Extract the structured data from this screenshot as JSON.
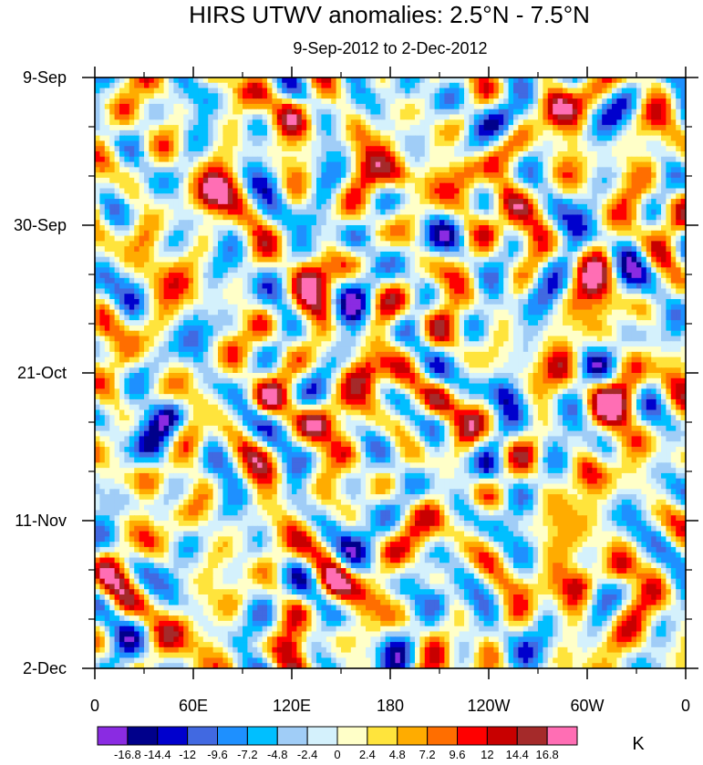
{
  "chart_data": {
    "type": "heatmap",
    "title": "HIRS UTWV anomalies: 2.5°N - 7.5°N",
    "subtitle": "9-Sep-2012 to 2-Dec-2012",
    "x_ticks": [
      "0",
      "60E",
      "120E",
      "180",
      "120W",
      "60W",
      "0"
    ],
    "x_tick_values": [
      0,
      60,
      120,
      180,
      240,
      300,
      360
    ],
    "xlim": [
      0,
      360
    ],
    "y_ticks": [
      "9-Sep",
      "30-Sep",
      "21-Oct",
      "11-Nov",
      "2-Dec"
    ],
    "y_tick_values": [
      0,
      21,
      42,
      63,
      84
    ],
    "ylim": [
      0,
      84
    ],
    "colorbar_unit": "K",
    "colorbar_labels": [
      "-16.8",
      "-14.4",
      "-12",
      "-9.6",
      "-7.2",
      "-4.8",
      "-2.4",
      "0",
      "2.4",
      "4.8",
      "7.2",
      "9.6",
      "12",
      "14.4",
      "16.8"
    ],
    "levels": [
      -16.8,
      -14.4,
      -12,
      -9.6,
      -7.2,
      -4.8,
      -2.4,
      0,
      2.4,
      4.8,
      7.2,
      9.6,
      12,
      14.4,
      16.8
    ],
    "colors": [
      "#8a2be2",
      "#00008b",
      "#0000cd",
      "#4169e1",
      "#1e90ff",
      "#00bfff",
      "#a0cdf7",
      "#d4f1fc",
      "#ffffc8",
      "#ffe43c",
      "#ffac00",
      "#ff6e00",
      "#ff0000",
      "#c80000",
      "#a52a2a",
      "#ff6eb4"
    ],
    "anomaly_features": [
      {
        "lon": 70,
        "day": 17,
        "value": 12.5
      },
      {
        "lon": 30,
        "day": 22,
        "value": 4
      },
      {
        "lon": 130,
        "day": 28,
        "value": 9
      },
      {
        "lon": 185,
        "day": 14,
        "value": 13
      },
      {
        "lon": 225,
        "day": 13,
        "value": 13
      },
      {
        "lon": 250,
        "day": 17,
        "value": 9
      },
      {
        "lon": 280,
        "day": 4,
        "value": 13
      },
      {
        "lon": 160,
        "day": 7,
        "value": 6
      },
      {
        "lon": 165,
        "day": 42,
        "value": 12
      },
      {
        "lon": 135,
        "day": 49,
        "value": 13
      },
      {
        "lon": 105,
        "day": 46,
        "value": 11
      },
      {
        "lon": 210,
        "day": 46,
        "value": 11
      },
      {
        "lon": 305,
        "day": 44,
        "value": 9
      },
      {
        "lon": 325,
        "day": 46,
        "value": 9
      },
      {
        "lon": 300,
        "day": 56,
        "value": 9
      },
      {
        "lon": 145,
        "day": 72,
        "value": 12
      },
      {
        "lon": 120,
        "day": 81,
        "value": 13
      },
      {
        "lon": 295,
        "day": 72,
        "value": 12
      },
      {
        "lon": 320,
        "day": 70,
        "value": 11
      },
      {
        "lon": 40,
        "day": 74,
        "value": 5
      },
      {
        "lon": 10,
        "day": 63,
        "value": 4
      },
      {
        "lon": 310,
        "day": 32,
        "value": 7
      },
      {
        "lon": 215,
        "day": 58,
        "value": 6
      },
      {
        "lon": 60,
        "day": 56,
        "value": 5
      },
      {
        "lon": 340,
        "day": 12,
        "value": 5
      },
      {
        "lon": 120,
        "day": 5,
        "value": 5
      },
      {
        "lon": 190,
        "day": 2,
        "value": -9
      },
      {
        "lon": 215,
        "day": 4,
        "value": -8
      },
      {
        "lon": 250,
        "day": 6,
        "value": -12
      },
      {
        "lon": 160,
        "day": 23,
        "value": -10
      },
      {
        "lon": 205,
        "day": 24,
        "value": -6
      },
      {
        "lon": 20,
        "day": 32,
        "value": -6
      },
      {
        "lon": 45,
        "day": 48,
        "value": -13
      },
      {
        "lon": 70,
        "day": 49,
        "value": -11
      },
      {
        "lon": 35,
        "day": 54,
        "value": -6
      },
      {
        "lon": 250,
        "day": 45,
        "value": -13
      },
      {
        "lon": 240,
        "day": 56,
        "value": -12
      },
      {
        "lon": 195,
        "day": 58,
        "value": -8
      },
      {
        "lon": 210,
        "day": 74,
        "value": -9
      },
      {
        "lon": 250,
        "day": 80,
        "value": -9
      },
      {
        "lon": 100,
        "day": 72,
        "value": -7
      },
      {
        "lon": 20,
        "day": 60,
        "value": -8
      },
      {
        "lon": 340,
        "day": 60,
        "value": -7
      },
      {
        "lon": 345,
        "day": 28,
        "value": -6
      },
      {
        "lon": 160,
        "day": 82,
        "value": -12
      },
      {
        "lon": 90,
        "day": 36,
        "value": -5
      },
      {
        "lon": 270,
        "day": 32,
        "value": -5
      },
      {
        "lon": 160,
        "day": 62,
        "value": -6
      },
      {
        "lon": 110,
        "day": 20,
        "value": -6
      },
      {
        "lon": 10,
        "day": 8,
        "value": -5
      }
    ]
  }
}
